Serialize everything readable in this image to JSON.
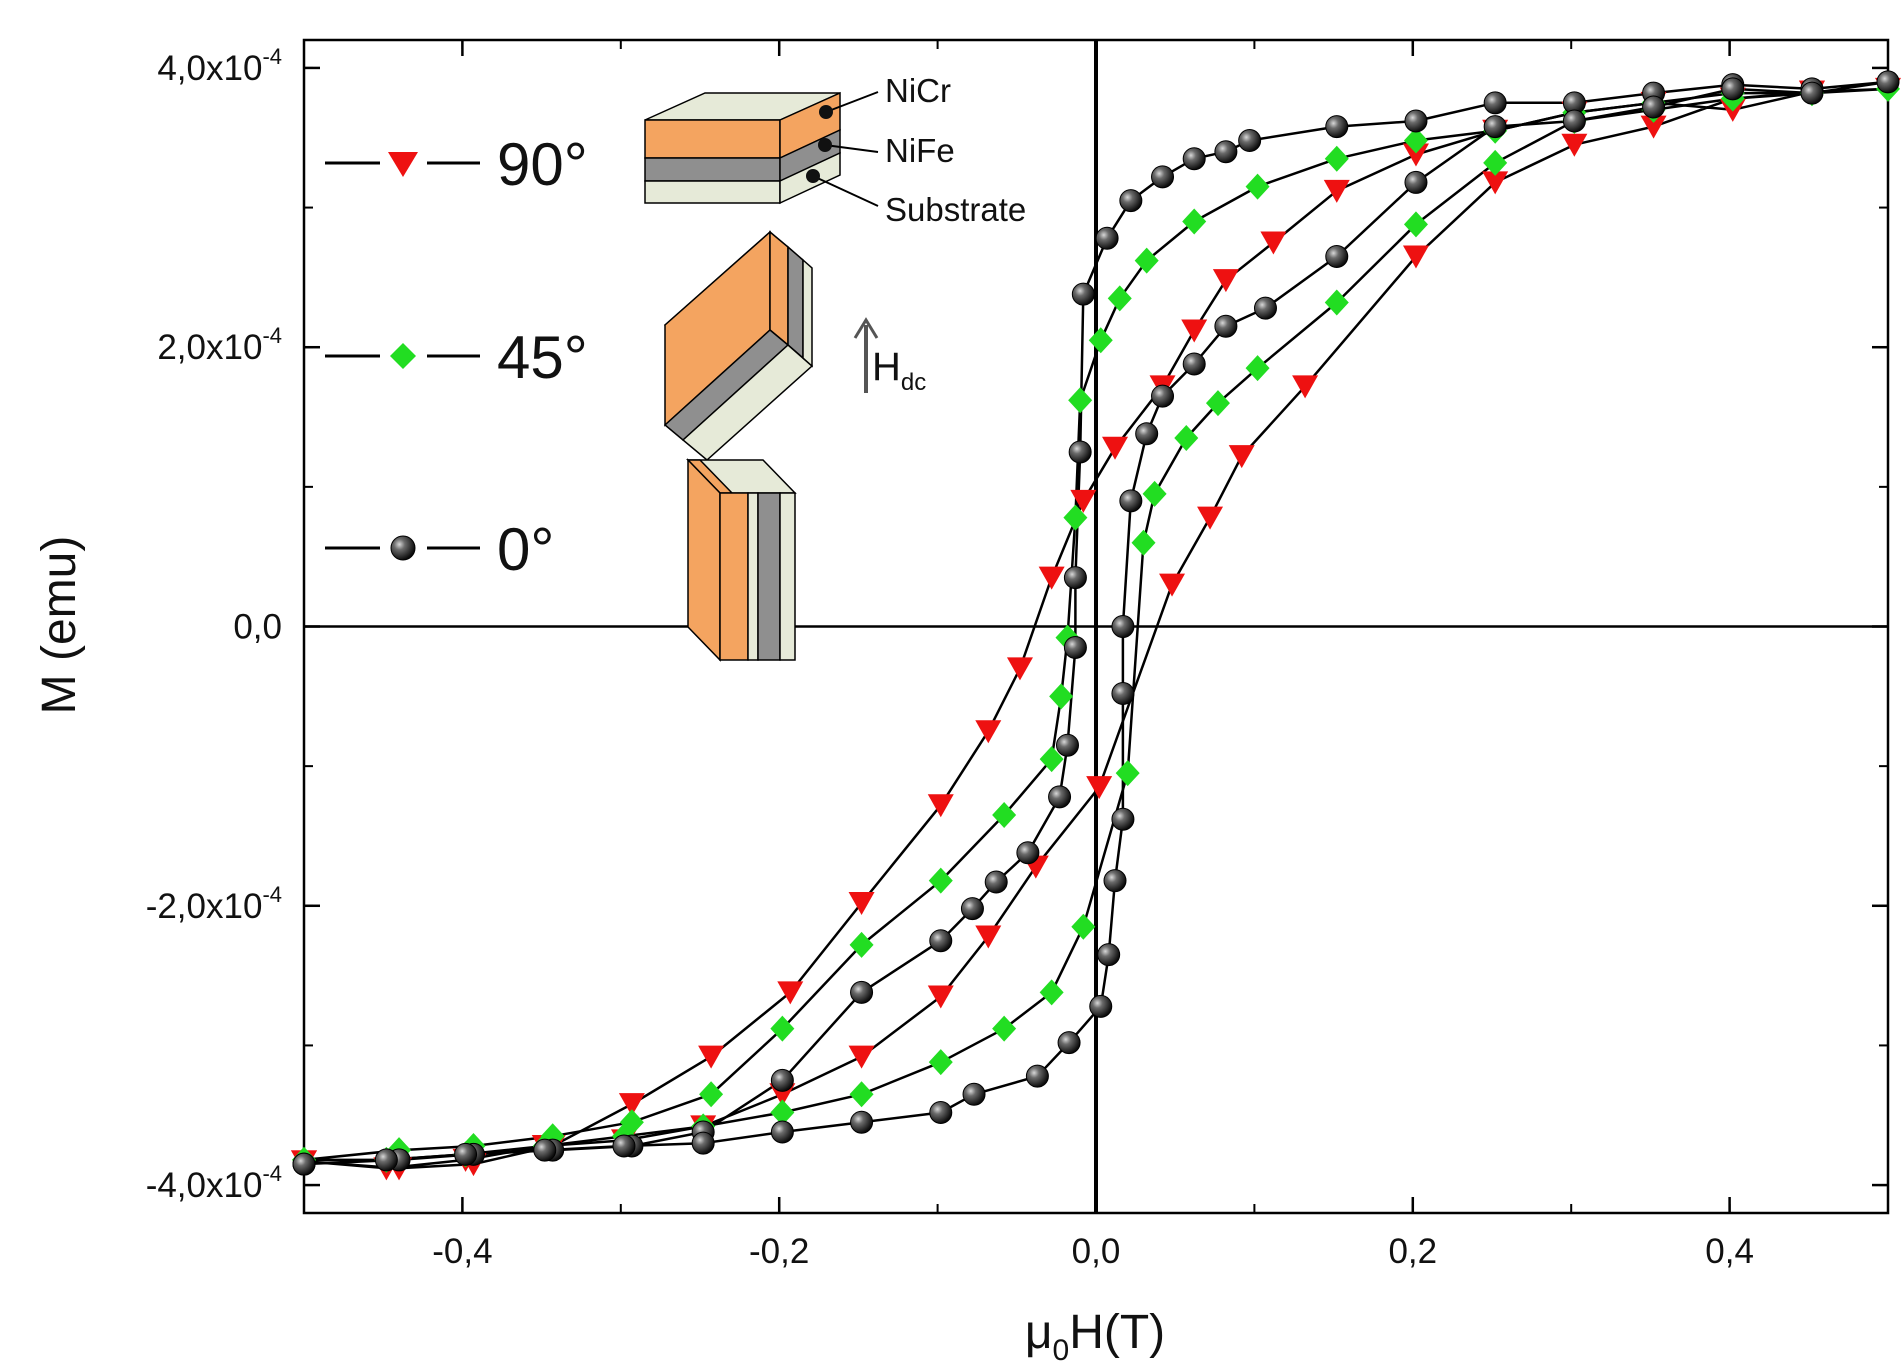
{
  "chart_data": {
    "type": "line",
    "title": "",
    "xlabel": "μ₀H(T)",
    "xlabel_main": "μ",
    "xlabel_sub": "0",
    "xlabel_tail": "H(T)",
    "ylabel": "M (emu)",
    "xlim": [
      -0.5,
      0.5
    ],
    "ylim": [
      -0.00042,
      0.00042
    ],
    "x_ticks": [
      -0.4,
      -0.2,
      0.0,
      0.2,
      0.4
    ],
    "x_tick_labels": [
      "-0,4",
      "-0,2",
      "0,0",
      "0,2",
      "0,4"
    ],
    "y_ticks": [
      -0.0004,
      -0.0002,
      0.0,
      0.0002,
      0.0004
    ],
    "y_tick_labels": [
      {
        "mant": "-4,0x10",
        "exp": "-4"
      },
      {
        "mant": "-2,0x10",
        "exp": "-4"
      },
      {
        "mant": "0,0",
        "exp": ""
      },
      {
        "mant": "2,0x10",
        "exp": "-4"
      },
      {
        "mant": "4,0x10",
        "exp": "-4"
      }
    ],
    "grid": false,
    "legend_position": "top-left",
    "series": [
      {
        "name": "90°",
        "marker": "triangle-down",
        "color": "#ee1111",
        "points": [
          [
            -0.5,
            -0.000383
          ],
          [
            -0.44,
            -0.000388
          ],
          [
            -0.393,
            -0.000385
          ],
          [
            -0.343,
            -0.000372
          ],
          [
            -0.293,
            -0.000342
          ],
          [
            -0.243,
            -0.000308
          ],
          [
            -0.193,
            -0.000262
          ],
          [
            -0.148,
            -0.000198
          ],
          [
            -0.098,
            -0.000128
          ],
          [
            -0.068,
            -7.5e-05
          ],
          [
            -0.048,
            -3e-05
          ],
          [
            -0.028,
            3.5e-05
          ],
          [
            -0.008,
            9e-05
          ],
          [
            0.012,
            0.000128
          ],
          [
            0.042,
            0.000172
          ],
          [
            0.062,
            0.000212
          ],
          [
            0.082,
            0.000248
          ],
          [
            0.112,
            0.000275
          ],
          [
            0.152,
            0.000312
          ],
          [
            0.202,
            0.000338
          ],
          [
            0.252,
            0.000355
          ],
          [
            0.302,
            0.000368
          ],
          [
            0.352,
            0.000375
          ],
          [
            0.402,
            0.00037
          ],
          [
            0.452,
            0.000383
          ],
          [
            0.5,
            0.000385
          ],
          [
            0.452,
            0.000383
          ],
          [
            0.402,
            0.000378
          ],
          [
            0.352,
            0.000358
          ],
          [
            0.302,
            0.000345
          ],
          [
            0.252,
            0.000318
          ],
          [
            0.202,
            0.000265
          ],
          [
            0.132,
            0.000172
          ],
          [
            0.092,
            0.000122
          ],
          [
            0.072,
            7.8e-05
          ],
          [
            0.048,
            3e-05
          ],
          [
            0.002,
            -0.000115
          ],
          [
            -0.038,
            -0.000172
          ],
          [
            -0.068,
            -0.000222
          ],
          [
            -0.098,
            -0.000265
          ],
          [
            -0.148,
            -0.000308
          ],
          [
            -0.198,
            -0.000335
          ],
          [
            -0.248,
            -0.000358
          ],
          [
            -0.298,
            -0.000368
          ],
          [
            -0.348,
            -0.000372
          ],
          [
            -0.398,
            -0.000382
          ],
          [
            -0.448,
            -0.000388
          ],
          [
            -0.5,
            -0.000383
          ]
        ]
      },
      {
        "name": "45°",
        "marker": "diamond",
        "color": "#22dd22",
        "points": [
          [
            -0.5,
            -0.000382
          ],
          [
            -0.44,
            -0.000375
          ],
          [
            -0.393,
            -0.000372
          ],
          [
            -0.343,
            -0.000365
          ],
          [
            -0.293,
            -0.000355
          ],
          [
            -0.243,
            -0.000335
          ],
          [
            -0.198,
            -0.000288
          ],
          [
            -0.148,
            -0.000228
          ],
          [
            -0.098,
            -0.000182
          ],
          [
            -0.058,
            -0.000135
          ],
          [
            -0.028,
            -9.5e-05
          ],
          [
            -0.022,
            -5e-05
          ],
          [
            -0.018,
            -8e-06
          ],
          [
            -0.013,
            7.8e-05
          ],
          [
            -0.01,
            0.000162
          ],
          [
            0.003,
            0.000205
          ],
          [
            0.015,
            0.000235
          ],
          [
            0.032,
            0.000262
          ],
          [
            0.062,
            0.00029
          ],
          [
            0.102,
            0.000315
          ],
          [
            0.152,
            0.000335
          ],
          [
            0.202,
            0.000348
          ],
          [
            0.252,
            0.000355
          ],
          [
            0.302,
            0.000368
          ],
          [
            0.352,
            0.000375
          ],
          [
            0.402,
            0.000382
          ],
          [
            0.452,
            0.000382
          ],
          [
            0.5,
            0.000385
          ],
          [
            0.452,
            0.000382
          ],
          [
            0.402,
            0.000378
          ],
          [
            0.352,
            0.00037
          ],
          [
            0.302,
            0.000362
          ],
          [
            0.252,
            0.000332
          ],
          [
            0.202,
            0.000288
          ],
          [
            0.152,
            0.000232
          ],
          [
            0.102,
            0.000185
          ],
          [
            0.077,
            0.00016
          ],
          [
            0.057,
            0.000135
          ],
          [
            0.037,
            9.5e-05
          ],
          [
            0.03,
            6e-05
          ],
          [
            0.02,
            -0.000105
          ],
          [
            -0.008,
            -0.000215
          ],
          [
            -0.028,
            -0.000262
          ],
          [
            -0.058,
            -0.000288
          ],
          [
            -0.098,
            -0.000312
          ],
          [
            -0.148,
            -0.000335
          ],
          [
            -0.198,
            -0.000348
          ],
          [
            -0.248,
            -0.000358
          ],
          [
            -0.298,
            -0.000365
          ],
          [
            -0.348,
            -0.000372
          ],
          [
            -0.398,
            -0.000378
          ],
          [
            -0.448,
            -0.000382
          ],
          [
            -0.5,
            -0.000382
          ]
        ]
      },
      {
        "name": "0°",
        "marker": "circle",
        "color": "#1a1a1a",
        "points": [
          [
            -0.5,
            -0.000385
          ],
          [
            -0.44,
            -0.000382
          ],
          [
            -0.393,
            -0.000378
          ],
          [
            -0.343,
            -0.000375
          ],
          [
            -0.293,
            -0.000372
          ],
          [
            -0.248,
            -0.000362
          ],
          [
            -0.198,
            -0.000325
          ],
          [
            -0.148,
            -0.000262
          ],
          [
            -0.098,
            -0.000225
          ],
          [
            -0.078,
            -0.000202
          ],
          [
            -0.063,
            -0.000183
          ],
          [
            -0.043,
            -0.000162
          ],
          [
            -0.023,
            -0.000122
          ],
          [
            -0.018,
            -8.5e-05
          ],
          [
            -0.013,
            -1.5e-05
          ],
          [
            -0.013,
            3.5e-05
          ],
          [
            -0.01,
            0.000125
          ],
          [
            -0.008,
            0.000238
          ],
          [
            0.007,
            0.000278
          ],
          [
            0.022,
            0.000305
          ],
          [
            0.042,
            0.000322
          ],
          [
            0.062,
            0.000335
          ],
          [
            0.082,
            0.00034
          ],
          [
            0.097,
            0.000348
          ],
          [
            0.152,
            0.000358
          ],
          [
            0.202,
            0.000362
          ],
          [
            0.252,
            0.000375
          ],
          [
            0.302,
            0.000375
          ],
          [
            0.352,
            0.000382
          ],
          [
            0.402,
            0.000388
          ],
          [
            0.452,
            0.000385
          ],
          [
            0.5,
            0.00039
          ],
          [
            0.452,
            0.000382
          ],
          [
            0.402,
            0.000385
          ],
          [
            0.352,
            0.000372
          ],
          [
            0.302,
            0.000362
          ],
          [
            0.252,
            0.000358
          ],
          [
            0.202,
            0.000318
          ],
          [
            0.152,
            0.000265
          ],
          [
            0.107,
            0.000228
          ],
          [
            0.082,
            0.000215
          ],
          [
            0.062,
            0.000188
          ],
          [
            0.042,
            0.000165
          ],
          [
            0.032,
            0.000138
          ],
          [
            0.022,
            9e-05
          ],
          [
            0.017,
            0.0
          ],
          [
            0.017,
            -4.8e-05
          ],
          [
            0.017,
            -0.000138
          ],
          [
            0.012,
            -0.000182
          ],
          [
            0.008,
            -0.000235
          ],
          [
            0.003,
            -0.000272
          ],
          [
            -0.017,
            -0.000298
          ],
          [
            -0.037,
            -0.000322
          ],
          [
            -0.077,
            -0.000335
          ],
          [
            -0.098,
            -0.000348
          ],
          [
            -0.148,
            -0.000355
          ],
          [
            -0.198,
            -0.000362
          ],
          [
            -0.248,
            -0.00037
          ],
          [
            -0.298,
            -0.000372
          ],
          [
            -0.348,
            -0.000375
          ],
          [
            -0.398,
            -0.000378
          ],
          [
            -0.448,
            -0.000382
          ],
          [
            -0.5,
            -0.000385
          ]
        ]
      }
    ],
    "annotations": {
      "layers": [
        "NiCr",
        "NiFe",
        "Substrate"
      ],
      "field_main": "H",
      "field_sub": "dc"
    },
    "colors": {
      "nicr": "#f4a460",
      "nife": "#8f8f8f",
      "substrate": "#e6ead8",
      "marker_red": "#ee1111",
      "marker_green": "#22dd22",
      "marker_black": "#1a1a1a"
    }
  }
}
